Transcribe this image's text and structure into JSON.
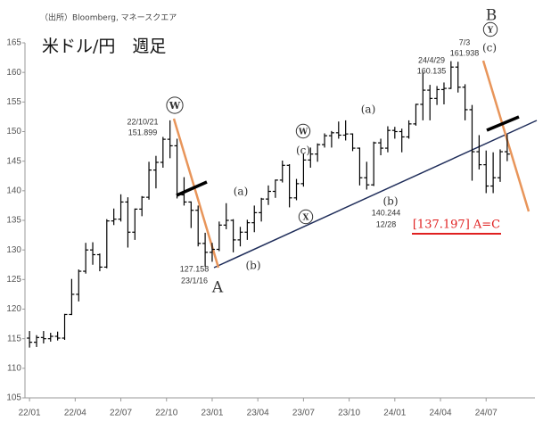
{
  "chart_data": {
    "type": "ohlc",
    "title": "米ドル/円　週足",
    "source": "（出所）Bloomberg, マネースクエア",
    "color": "#000000",
    "x": [
      0,
      2,
      4,
      6,
      8,
      10,
      12,
      14,
      16,
      18,
      20,
      22,
      24,
      26,
      28,
      30,
      32,
      34,
      36,
      38,
      40,
      42,
      44,
      46,
      48,
      50,
      52,
      54,
      56,
      58,
      60,
      62,
      64,
      66,
      68,
      70,
      72,
      74,
      76,
      78,
      80,
      82,
      84,
      86,
      88,
      90,
      92,
      94,
      96,
      98,
      100,
      102,
      104,
      106,
      108,
      110,
      112,
      114,
      116,
      118,
      120,
      122,
      124,
      126,
      128,
      130,
      132,
      134,
      136
    ],
    "open": [
      115.1,
      114.4,
      115.2,
      115.0,
      115.4,
      115.1,
      119.1,
      122.5,
      126.4,
      130.0,
      129.2,
      127.1,
      134.9,
      135.2,
      138.1,
      133.0,
      136.9,
      138.9,
      143.5,
      144.8,
      148.7,
      147.6,
      139.3,
      138.1,
      136.7,
      131.1,
      129.6,
      130.1,
      134.2,
      135.0,
      131.7,
      133.0,
      134.6,
      136.3,
      138.6,
      139.9,
      141.8,
      144.3,
      138.8,
      141.2,
      145.2,
      146.2,
      147.8,
      149.3,
      149.8,
      149.4,
      149.6,
      147.2,
      142.2,
      141.0,
      148.1,
      147.2,
      150.2,
      150.0,
      149.1,
      151.3,
      154.6,
      157.0,
      155.6,
      157.1,
      157.3,
      160.9,
      157.5,
      153.7,
      146.6,
      144.4,
      140.8,
      142.2,
      146.6
    ],
    "high": [
      116.3,
      115.6,
      116.3,
      116.0,
      116.2,
      119.2,
      125.1,
      126.7,
      131.2,
      131.3,
      129.4,
      135.2,
      137.0,
      139.4,
      138.9,
      137.0,
      139.1,
      144.9,
      145.9,
      149.1,
      151.9,
      148.8,
      142.3,
      138.2,
      137.5,
      132.9,
      131.2,
      134.8,
      137.9,
      135.2,
      133.9,
      135.1,
      137.5,
      138.8,
      140.9,
      141.9,
      145.1,
      144.5,
      142.0,
      146.3,
      147.3,
      148.0,
      149.7,
      150.1,
      151.7,
      151.9,
      149.7,
      147.3,
      144.9,
      148.3,
      148.8,
      150.9,
      150.8,
      150.5,
      151.9,
      154.7,
      160.1,
      157.9,
      157.7,
      158.3,
      161.9,
      161.8,
      158.0,
      154.5,
      149.4,
      146.8,
      146.5,
      147.0,
      149.5
    ],
    "low": [
      113.5,
      113.6,
      114.2,
      114.5,
      114.7,
      114.8,
      119.0,
      121.3,
      126.0,
      127.5,
      126.4,
      126.9,
      134.2,
      134.8,
      130.4,
      131.7,
      135.7,
      138.5,
      140.4,
      143.9,
      145.5,
      138.7,
      137.5,
      133.7,
      130.6,
      127.2,
      128.0,
      129.8,
      133.5,
      129.6,
      130.6,
      131.7,
      133.0,
      134.8,
      137.6,
      138.8,
      141.4,
      137.2,
      138.4,
      140.7,
      143.9,
      144.9,
      147.3,
      147.3,
      148.8,
      148.5,
      146.7,
      140.9,
      140.2,
      140.8,
      146.0,
      146.5,
      148.8,
      146.5,
      148.8,
      151.0,
      151.9,
      151.9,
      154.5,
      154.6,
      157.2,
      156.6,
      151.9,
      141.7,
      143.6,
      139.6,
      139.6,
      141.5,
      145.0
    ],
    "close": [
      114.4,
      115.2,
      115.0,
      115.4,
      115.1,
      119.1,
      122.5,
      126.4,
      130.0,
      129.2,
      127.1,
      134.9,
      135.2,
      138.1,
      133.0,
      136.9,
      138.9,
      143.5,
      144.8,
      148.7,
      147.6,
      139.3,
      138.1,
      136.7,
      131.1,
      129.6,
      130.1,
      134.2,
      135.0,
      131.7,
      133.0,
      134.6,
      136.3,
      138.6,
      139.9,
      141.8,
      144.3,
      138.8,
      141.2,
      145.2,
      146.2,
      147.8,
      149.3,
      149.8,
      149.4,
      149.6,
      147.2,
      142.2,
      141.0,
      148.1,
      147.2,
      150.2,
      150.0,
      149.1,
      151.3,
      154.6,
      157.0,
      155.6,
      157.1,
      157.3,
      160.9,
      157.5,
      153.7,
      146.6,
      144.4,
      140.8,
      142.2,
      146.6,
      146.2
    ],
    "xlim": [
      -1.3,
      143.9
    ],
    "xticks": [
      {
        "value": 0,
        "label": "22/01"
      },
      {
        "value": 13,
        "label": "22/04"
      },
      {
        "value": 26,
        "label": "22/07"
      },
      {
        "value": 39,
        "label": "22/10"
      },
      {
        "value": 52,
        "label": "23/01"
      },
      {
        "value": 65,
        "label": "23/04"
      },
      {
        "value": 78,
        "label": "23/07"
      },
      {
        "value": 91,
        "label": "23/10"
      },
      {
        "value": 104,
        "label": "24/01"
      },
      {
        "value": 117,
        "label": "24/04"
      },
      {
        "value": 130,
        "label": "24/07"
      }
    ],
    "ylim": [
      105,
      165
    ],
    "yticks": [
      105,
      110,
      115,
      120,
      125,
      130,
      135,
      140,
      145,
      150,
      155,
      160,
      165
    ],
    "annotations": [
      "W",
      "22/10/21",
      "151.899",
      "(a)",
      "(b)",
      "127.158",
      "23/1/16",
      "A",
      "W",
      "(c)",
      "X",
      "(a)",
      "(b)",
      "140.244",
      "12/28",
      "24/4/29",
      "160.135",
      "7/3",
      "161.938",
      "B",
      "Y",
      "(c)",
      "[137.197] A=C"
    ]
  }
}
